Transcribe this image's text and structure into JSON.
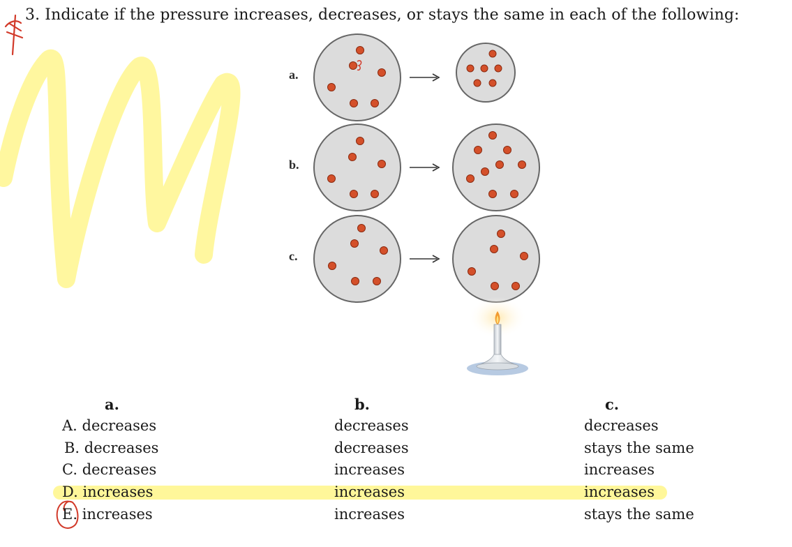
{
  "question": {
    "number": "3.",
    "text": "Indicate if the pressure increases, decreases, or stays the same in each of the following:"
  },
  "figure": {
    "row_labels": [
      "a.",
      "b.",
      "c."
    ],
    "arrow": "→",
    "colors": {
      "container_fill": "#dcdcdc",
      "container_stroke": "#666666",
      "particle": "#d4502a",
      "flame": "#f29a2e",
      "highlighter": "#fff79a",
      "ink": "#d23a2a"
    }
  },
  "answers": {
    "headers": [
      "a.",
      "b.",
      "c."
    ],
    "rows": [
      {
        "letter": "A.",
        "a": "decreases",
        "b": "decreases",
        "c": "decreases"
      },
      {
        "letter": "B.",
        "a": "decreases",
        "b": "decreases",
        "c": "stays the same"
      },
      {
        "letter": "C.",
        "a": "decreases",
        "b": "increases",
        "c": "increases"
      },
      {
        "letter": "D.",
        "a": "increases",
        "b": "increases",
        "c": "increases"
      },
      {
        "letter": "E.",
        "a": "increases",
        "b": "increases",
        "c": "stays the same"
      }
    ]
  }
}
